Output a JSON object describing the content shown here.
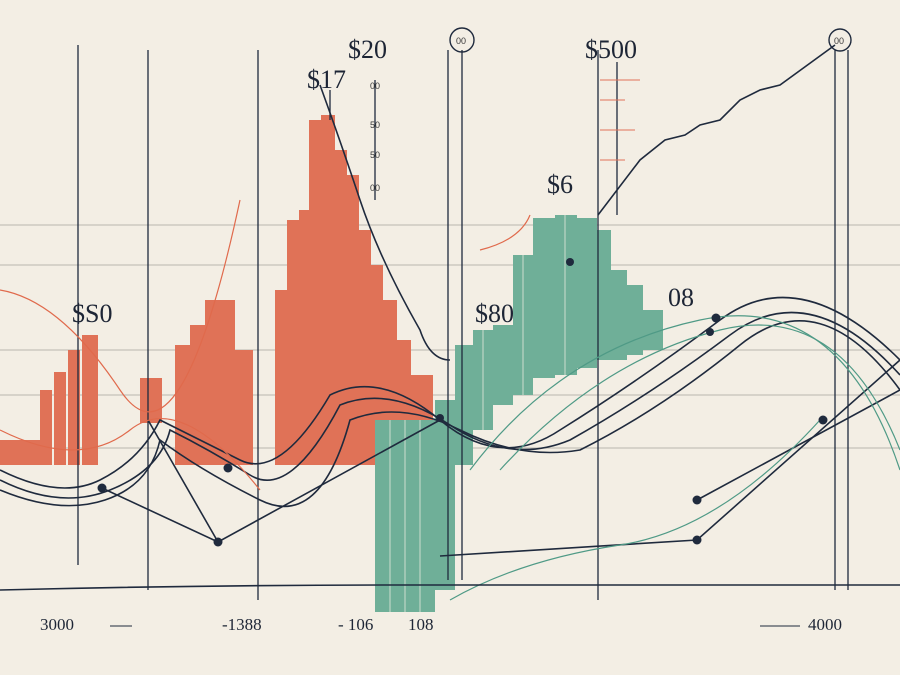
{
  "illustration": {
    "price_labels": [
      "$20",
      "$17",
      "$500",
      "$6",
      "$S0",
      "$80",
      "08"
    ],
    "circle_labels": [
      "00",
      "00"
    ],
    "scale_labels": [
      "00",
      "50",
      "50",
      "00"
    ],
    "axis_labels": [
      "3000",
      "-1388",
      "- 106",
      "108",
      "4000"
    ]
  }
}
